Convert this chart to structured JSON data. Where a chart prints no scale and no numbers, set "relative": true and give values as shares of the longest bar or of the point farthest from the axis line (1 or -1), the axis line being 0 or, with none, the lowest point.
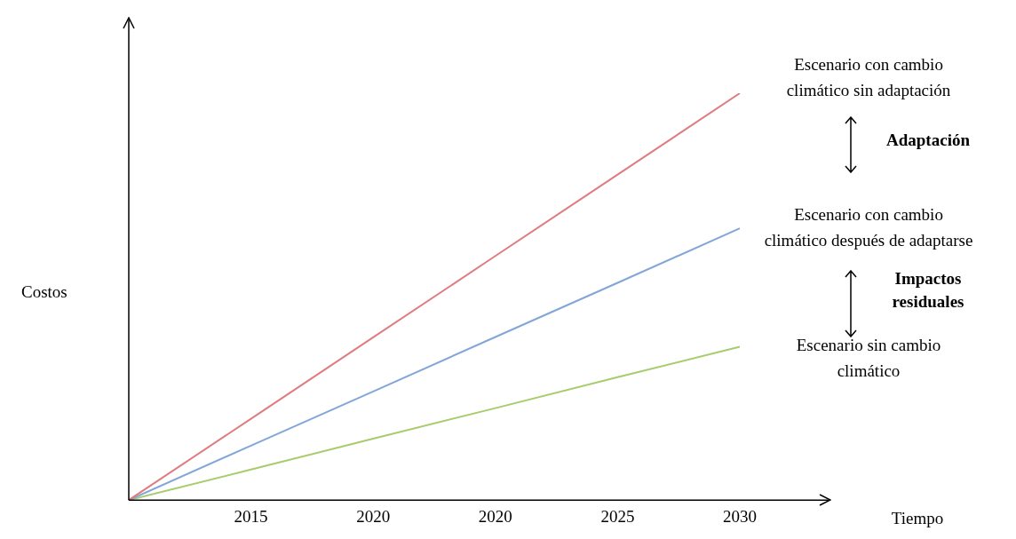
{
  "chart_data": {
    "type": "line",
    "relative": true,
    "xlabel": "Tiempo",
    "ylabel": "Costos",
    "categories": [
      null,
      "2015",
      "2020",
      "2020",
      "2025",
      "2030"
    ],
    "series": [
      {
        "name": "Escenario con cambio climático sin adaptación",
        "color": "#e07c80",
        "values": [
          0,
          0.2,
          0.4,
          0.6,
          0.8,
          1
        ]
      },
      {
        "name": "Escenario con cambio climático después de adaptarse",
        "color": "#82a6d8",
        "values": [
          0,
          0.134,
          0.267,
          0.401,
          0.534,
          0.668
        ]
      },
      {
        "name": "Escenario sin cambio climático",
        "color": "#a8cc6c",
        "values": [
          0,
          0.075,
          0.151,
          0.226,
          0.302,
          0.377
        ]
      }
    ],
    "annotations": [
      "Adaptación",
      "Impactos residuales"
    ],
    "grid": false,
    "legend": false,
    "marker": "none",
    "line_style": "solid"
  }
}
